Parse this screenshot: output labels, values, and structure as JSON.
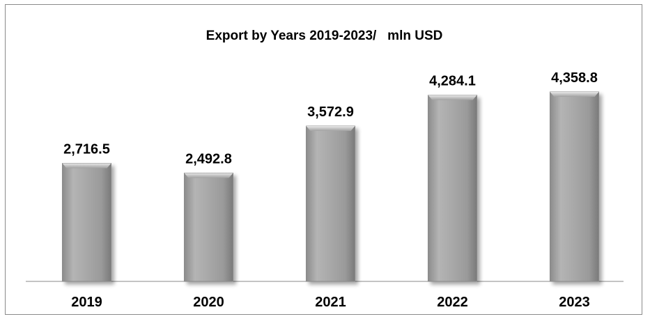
{
  "chart_data": {
    "type": "bar",
    "title": "Export by Years 2019-2023/   mln USD",
    "categories": [
      "2019",
      "2020",
      "2021",
      "2022",
      "2023"
    ],
    "values": [
      2716.5,
      2492.8,
      3572.9,
      4284.1,
      4358.8
    ],
    "value_labels": [
      "2,716.5",
      "2,492.8",
      "3,572.9",
      "4,284.1",
      "4,358.8"
    ],
    "xlabel": "",
    "ylabel": "",
    "ylim": [
      0,
      4358.8
    ],
    "grid": false,
    "legend": "none",
    "colors": {
      "bar": "#a6a6a6",
      "bar_highlight": "#dcdcdc",
      "bar_shadow": "#7f7f7f",
      "axis": "#8a8a8a"
    }
  }
}
